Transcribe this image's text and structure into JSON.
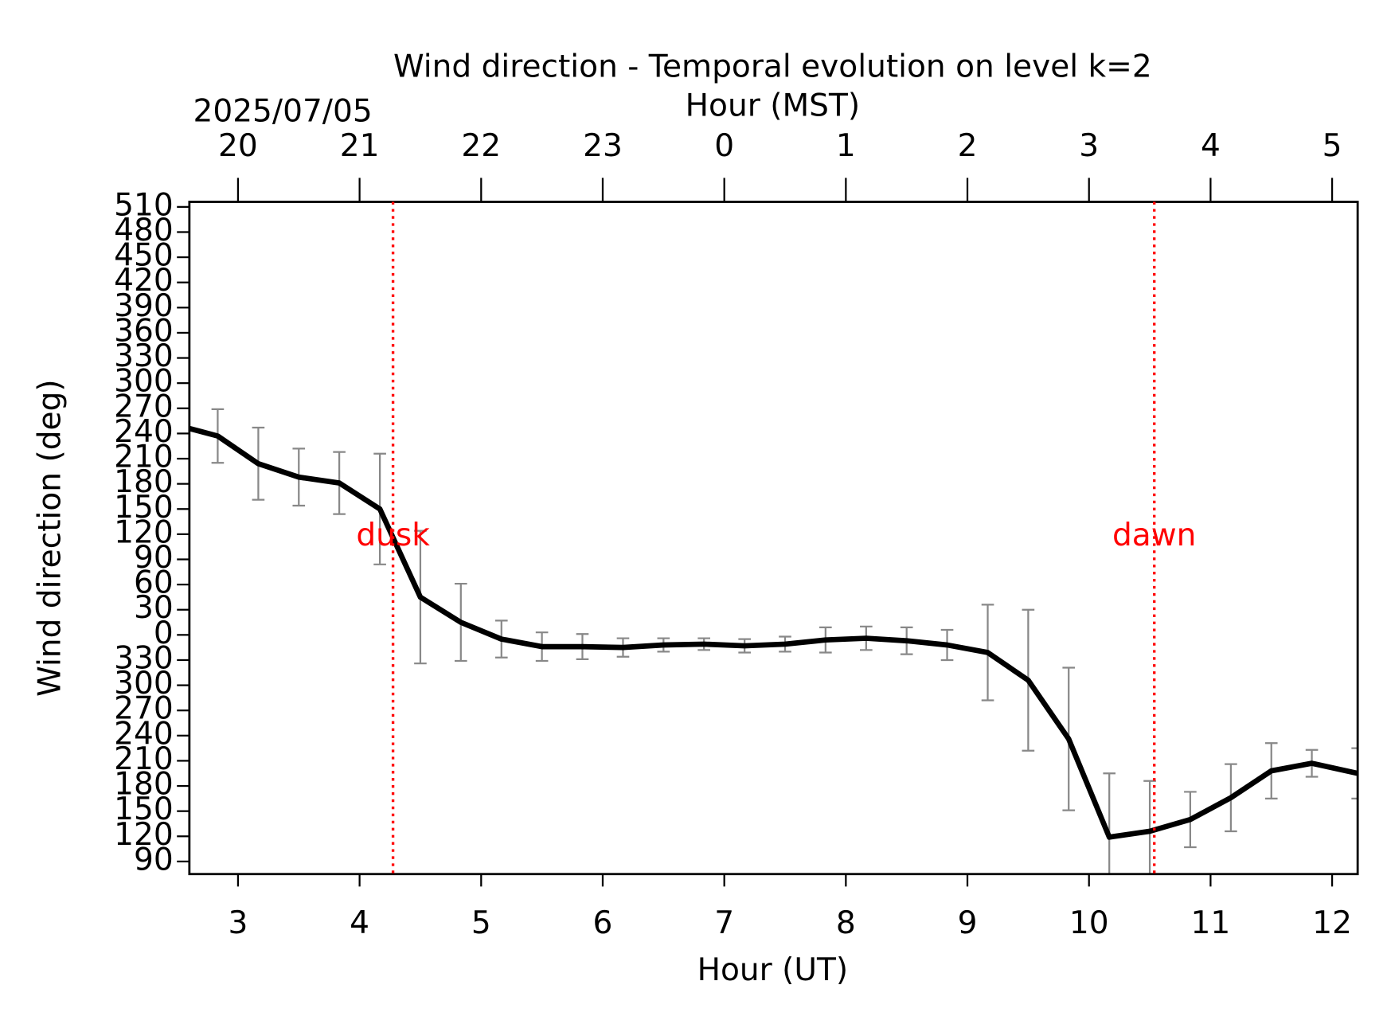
{
  "chart_data": {
    "type": "line",
    "title": "Wind direction - Temporal evolution on level k=2",
    "x2_label": "Hour (MST)",
    "date_label": "2025/07/05",
    "xlabel": "Hour (UT)",
    "ylabel": "Wind direction (deg)",
    "x": [
      2.6,
      2.833,
      3.167,
      3.5,
      3.833,
      4.167,
      4.5,
      4.833,
      5.167,
      5.5,
      5.833,
      6.167,
      6.5,
      6.833,
      7.167,
      7.5,
      7.833,
      8.167,
      8.5,
      8.833,
      9.167,
      9.5,
      9.833,
      10.167,
      10.5,
      10.833,
      11.167,
      11.5,
      11.833,
      12.21
    ],
    "series": [
      {
        "name": "Wind direction",
        "color": "#000000",
        "error_color": "#888888",
        "values": [
          246,
          237,
          204,
          188,
          181,
          150,
          45,
          15,
          -5,
          -14,
          -14,
          -15,
          -12,
          -11,
          -13,
          -11,
          -6,
          -4,
          -7,
          -12,
          -21,
          -54,
          -124,
          -241,
          -234,
          -220,
          -194,
          -162,
          -153,
          -165
        ],
        "errors": [
          null,
          32,
          43,
          34,
          37,
          66,
          79,
          46,
          22,
          17,
          15,
          11,
          8,
          7,
          8,
          9,
          15,
          14,
          16,
          18,
          57,
          84,
          85,
          76,
          60,
          33,
          40,
          33,
          16,
          30
        ]
      }
    ],
    "xlim": [
      2.6,
      12.21
    ],
    "xticks": [
      3,
      4,
      5,
      6,
      7,
      8,
      9,
      10,
      11,
      12
    ],
    "x2ticks": [
      {
        "value": 3,
        "label": "20"
      },
      {
        "value": 4,
        "label": "21"
      },
      {
        "value": 5,
        "label": "22"
      },
      {
        "value": 6,
        "label": "23"
      },
      {
        "value": 7,
        "label": "0"
      },
      {
        "value": 8,
        "label": "1"
      },
      {
        "value": 9,
        "label": "2"
      },
      {
        "value": 10,
        "label": "3"
      },
      {
        "value": 11,
        "label": "4"
      },
      {
        "value": 12,
        "label": "5"
      }
    ],
    "ylim": [
      -285,
      516
    ],
    "yticks": [
      510,
      480,
      450,
      420,
      390,
      360,
      330,
      300,
      270,
      240,
      210,
      180,
      150,
      120,
      90,
      60,
      30,
      0,
      {
        "value": -30,
        "label": "330"
      },
      {
        "value": -60,
        "label": "300"
      },
      {
        "value": -90,
        "label": "270"
      },
      {
        "value": -120,
        "label": "240"
      },
      {
        "value": -150,
        "label": "210"
      },
      {
        "value": -180,
        "label": "180"
      },
      {
        "value": -210,
        "label": "150"
      },
      {
        "value": -240,
        "label": "120"
      },
      {
        "value": -270,
        "label": "90"
      }
    ],
    "vlines": [
      {
        "x": 4.275,
        "label": "dusk",
        "color": "#ff0000"
      },
      {
        "x": 10.537,
        "label": "dawn",
        "color": "#ff0000"
      }
    ]
  }
}
